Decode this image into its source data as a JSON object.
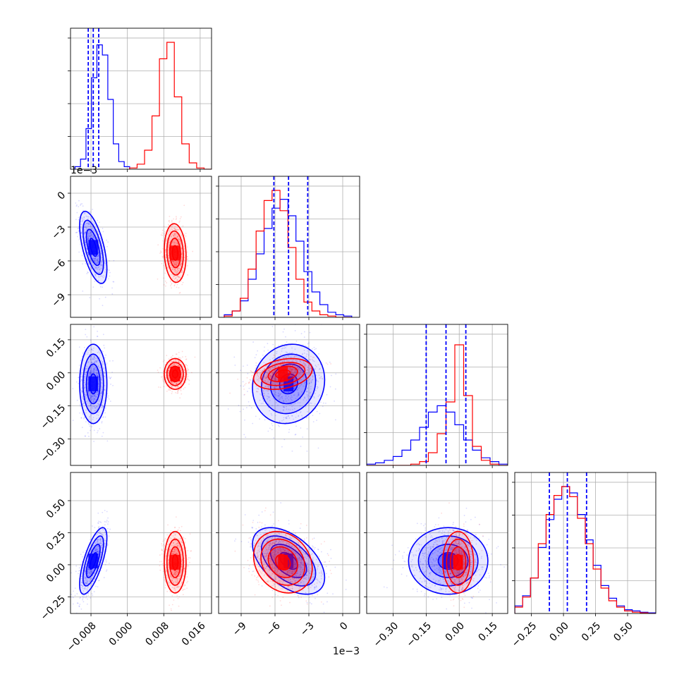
{
  "chart_data": {
    "type": "corner",
    "grid": true,
    "params": [
      {
        "range": [
          -0.0125,
          0.0185
        ],
        "ticks": [
          -0.008,
          0.0,
          0.008,
          0.016
        ],
        "tick_labels": [
          "−0.008",
          "0.000",
          "0.008",
          "0.016"
        ],
        "offset_text": ""
      },
      {
        "range": [
          -11.0,
          1.5
        ],
        "ticks": [
          -9,
          -6,
          -3,
          0
        ],
        "tick_labels": [
          "−9",
          "−6",
          "−3",
          "0"
        ],
        "offset_text": "1e−3"
      },
      {
        "range": [
          -0.42,
          0.22
        ],
        "ticks": [
          -0.3,
          -0.15,
          0.0,
          0.15
        ],
        "tick_labels": [
          "−0.30",
          "−0.15",
          "0.00",
          "0.15"
        ],
        "offset_text": ""
      },
      {
        "range": [
          -0.38,
          0.72
        ],
        "ticks": [
          -0.25,
          0.0,
          0.25,
          0.5
        ],
        "tick_labels": [
          "−0.25",
          "0.00",
          "0.25",
          "0.50"
        ],
        "offset_text": ""
      }
    ],
    "series": [
      {
        "color": "#0000ff",
        "mean": [
          -0.0075,
          -4.8,
          -0.05,
          0.03
        ],
        "sd": [
          0.0015,
          1.6,
          0.09,
          0.13
        ],
        "corr": [
          [
            1,
            -0.6,
            0,
            0.7
          ],
          [
            -0.6,
            1,
            0.1,
            -0.5
          ],
          [
            0,
            0.1,
            1,
            0
          ],
          [
            0.7,
            -0.5,
            0,
            1
          ]
        ],
        "quantiles": [
          [
            -0.0086,
            -0.0075,
            -0.0063
          ],
          [
            -6.1,
            -4.8,
            -3.1
          ],
          [
            -0.15,
            -0.06,
            0.03
          ],
          [
            -0.11,
            0.03,
            0.18
          ]
        ],
        "hist": [
          {
            "edges": [
              -0.0115,
              0.0005
            ],
            "heights": [
              0.02,
              0.08,
              0.32,
              0.72,
              0.98,
              0.9,
              0.55,
              0.2,
              0.06,
              0.02
            ]
          },
          {
            "edges": [
              -10.5,
              0.8
            ],
            "heights": [
              0.02,
              0.05,
              0.13,
              0.3,
              0.5,
              0.7,
              0.86,
              0.93,
              0.8,
              0.6,
              0.36,
              0.2,
              0.1,
              0.04,
              0.02,
              0.01
            ]
          },
          {
            "edges": [
              -0.42,
              0.22
            ],
            "heights": [
              0.01,
              0.02,
              0.04,
              0.07,
              0.12,
              0.2,
              0.3,
              0.42,
              0.47,
              0.42,
              0.32,
              0.2,
              0.12,
              0.06,
              0.03,
              0.01
            ]
          },
          {
            "edges": [
              -0.38,
              0.72
            ],
            "heights": [
              0.06,
              0.14,
              0.28,
              0.52,
              0.74,
              0.9,
              1.0,
              0.95,
              0.78,
              0.58,
              0.38,
              0.22,
              0.12,
              0.06,
              0.03,
              0.02,
              0.01,
              0.005
            ]
          }
        ]
      },
      {
        "color": "#ff0000",
        "mean": [
          0.0105,
          -5.3,
          -0.005,
          0.02
        ],
        "sd": [
          0.0012,
          1.3,
          0.035,
          0.12
        ],
        "corr": [
          [
            1,
            -0.1,
            0,
            0
          ],
          [
            -0.1,
            1,
            0.3,
            -0.2
          ],
          [
            0,
            0.3,
            1,
            0
          ],
          [
            0,
            -0.2,
            0,
            1
          ]
        ],
        "quantiles": [
          [
            0.0093,
            0.0105,
            0.0117
          ],
          [
            -6.6,
            -5.3,
            -4.0
          ],
          [
            -0.04,
            -0.005,
            0.03
          ],
          [
            -0.1,
            0.02,
            0.14
          ]
        ],
        "hist": [
          {
            "edges": [
              0.0005,
              0.0185
            ],
            "heights": [
              0.01,
              0.04,
              0.15,
              0.42,
              0.87,
              1.0,
              0.57,
              0.2,
              0.05,
              0.01,
              0.0
            ]
          },
          {
            "edges": [
              -10.5,
              0.8
            ],
            "heights": [
              0.01,
              0.05,
              0.15,
              0.38,
              0.68,
              0.92,
              1.0,
              0.84,
              0.55,
              0.3,
              0.12,
              0.05,
              0.02,
              0.01,
              0.0,
              0.0
            ]
          },
          {
            "edges": [
              -0.42,
              0.22
            ],
            "heights": [
              0.0,
              0.0,
              0.0,
              0.0,
              0.0,
              0.01,
              0.03,
              0.1,
              0.25,
              0.5,
              0.95,
              0.55,
              0.15,
              0.04,
              0.01,
              0.0
            ]
          },
          {
            "edges": [
              -0.38,
              0.72
            ],
            "heights": [
              0.05,
              0.13,
              0.28,
              0.55,
              0.78,
              0.93,
              1.0,
              0.92,
              0.75,
              0.55,
              0.35,
              0.2,
              0.1,
              0.05,
              0.02,
              0.01,
              0.005,
              0.0
            ]
          }
        ]
      }
    ]
  }
}
